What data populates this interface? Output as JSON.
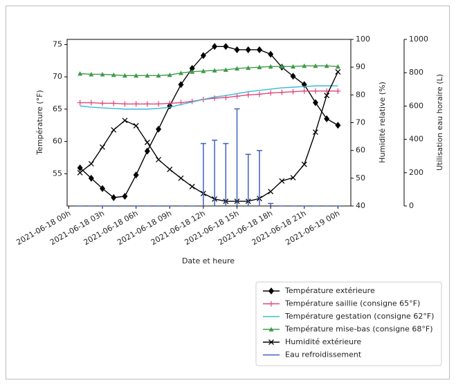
{
  "chart_data": {
    "type": "line",
    "xlabel": "Date et heure",
    "ylabel": "Température (°F)",
    "y2label": "Humidité relative (%)",
    "y3label": "Utilisation eau horaire (L)",
    "x": [
      1,
      2,
      3,
      4,
      5,
      6,
      7,
      8,
      9,
      10,
      11,
      12,
      13,
      14,
      15,
      16,
      17,
      18,
      19,
      20,
      21,
      22,
      23,
      24
    ],
    "xlim": [
      -0.15,
      25.15
    ],
    "xticks": [
      {
        "value": 0,
        "label": "2021-06-18 00h"
      },
      {
        "value": 3,
        "label": "2021-06-18 03h"
      },
      {
        "value": 6,
        "label": "2021-06-18 06h"
      },
      {
        "value": 9,
        "label": "2021-06-18 09h"
      },
      {
        "value": 12,
        "label": "2021-06-18 12h"
      },
      {
        "value": 15,
        "label": "2021-06-18 15h"
      },
      {
        "value": 18,
        "label": "2021-06-18 18h"
      },
      {
        "value": 21,
        "label": "2021-06-18 21h"
      },
      {
        "value": 24,
        "label": "2021-06-19 00h"
      }
    ],
    "ylim": [
      50,
      75.8
    ],
    "yticks": [
      55,
      60,
      65,
      70,
      75
    ],
    "y2lim": [
      40,
      100
    ],
    "y2ticks": [
      40,
      50,
      60,
      70,
      80,
      90,
      100
    ],
    "y3lim": [
      0,
      1000
    ],
    "y3ticks": [
      0,
      200,
      400,
      600,
      800,
      1000
    ],
    "legend": "lower right",
    "series": [
      {
        "name": "Température extérieure",
        "color": "#000000",
        "marker": "diamond",
        "axis": "y",
        "values": [
          55.9,
          54.3,
          52.7,
          51.3,
          51.5,
          54.8,
          58.5,
          61.9,
          65.5,
          68.8,
          71.3,
          73.3,
          74.7,
          74.7,
          74.2,
          74.2,
          74.2,
          73.5,
          71.5,
          70.1,
          68.8,
          66.0,
          63.5,
          62.5
        ]
      },
      {
        "name": "Température saillie (consigne 65°F)",
        "color": "#e0457b",
        "marker": "plus",
        "axis": "y",
        "values": [
          66.0,
          66.0,
          65.9,
          65.9,
          65.8,
          65.8,
          65.8,
          65.8,
          65.9,
          66.0,
          66.2,
          66.5,
          66.7,
          66.8,
          67.0,
          67.2,
          67.3,
          67.5,
          67.6,
          67.7,
          67.8,
          67.8,
          67.8,
          67.8
        ]
      },
      {
        "name": "Température gestation (consigne 62°F)",
        "color": "#3ab8d6",
        "marker": "none",
        "axis": "y",
        "values": [
          65.5,
          65.3,
          65.2,
          65.1,
          65.0,
          65.0,
          65.0,
          65.1,
          65.3,
          65.7,
          66.1,
          66.5,
          66.9,
          67.1,
          67.4,
          67.7,
          67.9,
          68.1,
          68.3,
          68.4,
          68.5,
          68.6,
          68.6,
          68.6
        ]
      },
      {
        "name": "Température mise-bas (consigne 68°F)",
        "color": "#3f9a4a",
        "marker": "triangle",
        "axis": "y",
        "values": [
          70.5,
          70.4,
          70.4,
          70.3,
          70.2,
          70.2,
          70.2,
          70.2,
          70.3,
          70.6,
          70.8,
          70.9,
          71.0,
          71.1,
          71.3,
          71.4,
          71.5,
          71.6,
          71.6,
          71.6,
          71.7,
          71.7,
          71.7,
          71.6
        ]
      },
      {
        "name": "Humidité extérieure",
        "color": "#000000",
        "marker": "x",
        "axis": "y2",
        "values": [
          52,
          55.2,
          61.2,
          67.4,
          70.8,
          68.9,
          62.9,
          56.7,
          53.2,
          50,
          47,
          44.5,
          42.5,
          41.7,
          41.7,
          41.7,
          42.7,
          45.2,
          49,
          50.2,
          55,
          66.6,
          79.8,
          88.3
        ]
      },
      {
        "name": "Eau refroidissement",
        "color": "#3f5fbf",
        "marker": "errorbar",
        "axis": "y3",
        "values": [
          0,
          0,
          0,
          0,
          0,
          0,
          0,
          0,
          0,
          0,
          0,
          375,
          395,
          375,
          583,
          310,
          333,
          15,
          0,
          0,
          0,
          0,
          0,
          0
        ]
      }
    ]
  }
}
